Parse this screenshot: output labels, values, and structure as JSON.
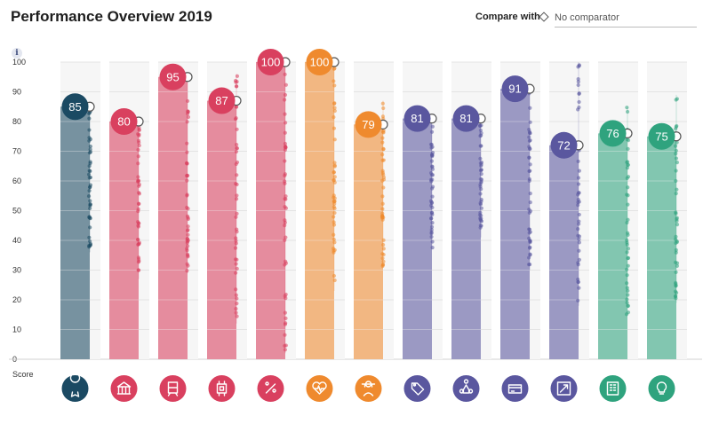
{
  "header": {
    "title": "Performance Overview 2019",
    "compare_label": "Compare with",
    "comparator_value": "No comparator"
  },
  "info_icon": {
    "glyph": "i"
  },
  "axis": {
    "label": "Score"
  },
  "chart_data": {
    "type": "bar",
    "title": "Performance Overview 2019",
    "ylabel": "Score",
    "ylim": [
      0,
      100
    ],
    "yticks": [
      0,
      10,
      20,
      30,
      40,
      50,
      60,
      70,
      80,
      90,
      100
    ],
    "grid": true,
    "categories": [
      "award",
      "institution",
      "transport",
      "technology",
      "percent",
      "health",
      "education",
      "tag",
      "network",
      "payment",
      "expand",
      "building",
      "idea"
    ],
    "values": [
      85,
      80,
      95,
      87,
      100,
      100,
      79,
      81,
      81,
      91,
      72,
      76,
      75
    ],
    "colors": [
      "#1b4a63",
      "#d9405f",
      "#d9405f",
      "#d9405f",
      "#d9405f",
      "#ef8a2e",
      "#ef8a2e",
      "#5a579f",
      "#5a579f",
      "#5a579f",
      "#5a579f",
      "#2fa37e",
      "#2fa37e"
    ],
    "icons": [
      "award-icon",
      "institution-icon",
      "train-icon",
      "chip-icon",
      "percent-icon",
      "heart-pulse-icon",
      "graduate-icon",
      "tag-icon",
      "network-icon",
      "card-icon",
      "expand-icon",
      "building-icon",
      "lightbulb-icon"
    ],
    "distributions": [
      {
        "min": 36,
        "max": 85
      },
      {
        "min": 27,
        "max": 80
      },
      {
        "min": 29,
        "max": 95
      },
      {
        "min": 12,
        "max": 96
      },
      {
        "min": 2,
        "max": 100
      },
      {
        "min": 23,
        "max": 100
      },
      {
        "min": 31,
        "max": 87
      },
      {
        "min": 37,
        "max": 81
      },
      {
        "min": 41,
        "max": 81
      },
      {
        "min": 30,
        "max": 91
      },
      {
        "min": 18,
        "max": 100
      },
      {
        "min": 15,
        "max": 85
      },
      {
        "min": 19,
        "max": 89
      }
    ]
  }
}
